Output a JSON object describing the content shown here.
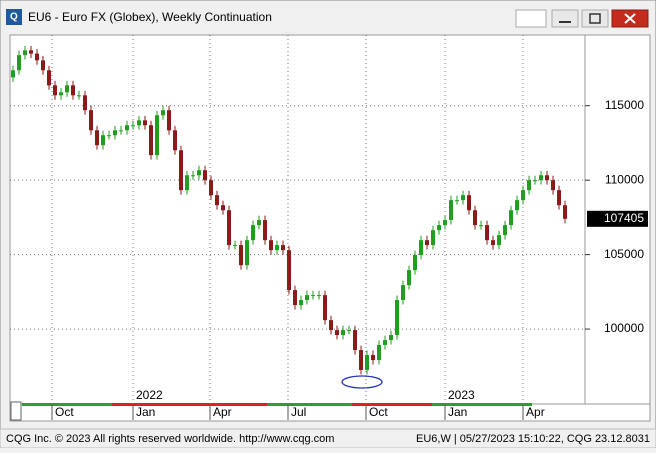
{
  "chart_data": {
    "type": "candlestick",
    "title": "EU6 - Euro FX (Globex), Weekly Continuation",
    "open": [
      116900,
      117380,
      118400,
      118720,
      118500,
      118050,
      117380,
      116370,
      115700,
      115900,
      116370,
      115700,
      115700,
      114700,
      113350,
      112350,
      113020,
      113020,
      113350,
      113350,
      113690,
      113690,
      114020,
      113690,
      111680,
      114360,
      114700,
      113350,
      112010,
      109330,
      110330,
      110330,
      110670,
      110000,
      108990,
      108320,
      107980,
      105640,
      105640,
      104290,
      105970,
      106980,
      107320,
      105970,
      105300,
      105640,
      105300,
      102620,
      101610,
      101950,
      102280,
      102280,
      102280,
      100600,
      99930,
      99600,
      99930,
      99930,
      98590,
      97250,
      98260,
      97920,
      98930,
      99260,
      99600,
      101950,
      102950,
      103960,
      104970,
      105970,
      105640,
      106640,
      106980,
      107320,
      108660,
      108660,
      108990,
      107980,
      106980,
      106980,
      105970,
      105640,
      106310,
      106980,
      107980,
      108660,
      109330,
      110000,
      110000,
      110330,
      110000,
      109330,
      108320
    ],
    "high": [
      117680,
      118700,
      119020,
      119020,
      118800,
      118350,
      117680,
      116670,
      116200,
      116670,
      116670,
      116000,
      116000,
      115000,
      113650,
      113320,
      113320,
      113650,
      113650,
      113990,
      113990,
      114320,
      114320,
      113990,
      114660,
      115000,
      115000,
      113650,
      112310,
      110630,
      110630,
      110970,
      110970,
      110300,
      109290,
      108620,
      108280,
      105940,
      105940,
      106270,
      107280,
      107620,
      107620,
      106270,
      105940,
      105940,
      105600,
      102920,
      102250,
      102580,
      102580,
      102580,
      102580,
      100900,
      100230,
      100230,
      100230,
      100230,
      98890,
      98560,
      98560,
      99230,
      99560,
      99900,
      102250,
      103250,
      104260,
      105270,
      106270,
      106270,
      106940,
      107280,
      107620,
      108960,
      108960,
      109290,
      109290,
      108280,
      107280,
      107280,
      106270,
      106610,
      107280,
      108280,
      108960,
      109630,
      110300,
      110300,
      110630,
      110630,
      110300,
      109630,
      108620
    ],
    "low": [
      116600,
      117080,
      118100,
      118200,
      117750,
      117080,
      116070,
      115400,
      115400,
      115600,
      115400,
      115400,
      114400,
      113050,
      112050,
      112050,
      112720,
      112720,
      113050,
      113050,
      113390,
      113390,
      113390,
      111380,
      111380,
      114060,
      113050,
      111710,
      109030,
      109030,
      110030,
      110030,
      109700,
      108690,
      108020,
      107680,
      105340,
      105340,
      103990,
      103990,
      105670,
      106680,
      105670,
      105000,
      105000,
      105000,
      102320,
      101310,
      101310,
      101650,
      101980,
      101980,
      100300,
      99630,
      99300,
      99300,
      99630,
      98290,
      96950,
      96950,
      97620,
      97620,
      98630,
      98960,
      99300,
      101650,
      102650,
      103660,
      104670,
      105340,
      105340,
      106340,
      106680,
      107020,
      108360,
      108360,
      107680,
      106680,
      106680,
      105670,
      105340,
      105340,
      106010,
      106680,
      107680,
      108360,
      109030,
      109700,
      109700,
      109700,
      109030,
      108020,
      107105
    ],
    "close": [
      117380,
      118400,
      118720,
      118500,
      118050,
      117380,
      116370,
      115700,
      115900,
      116370,
      115700,
      115700,
      114700,
      113350,
      112350,
      113020,
      113020,
      113350,
      113350,
      113690,
      113690,
      114020,
      113690,
      111680,
      114360,
      114700,
      113350,
      112010,
      109330,
      110330,
      110330,
      110670,
      110000,
      108990,
      108320,
      107980,
      105640,
      105640,
      104290,
      105970,
      106980,
      107320,
      105970,
      105300,
      105640,
      105300,
      102620,
      101610,
      101950,
      102280,
      102280,
      102280,
      100600,
      99930,
      99600,
      99930,
      99930,
      98590,
      97250,
      98260,
      97920,
      98930,
      99260,
      99600,
      101950,
      102950,
      103960,
      104970,
      105970,
      105640,
      106640,
      106980,
      107320,
      108660,
      108660,
      108990,
      107980,
      106980,
      106980,
      105970,
      105640,
      106310,
      106980,
      107980,
      108660,
      109330,
      110000,
      110000,
      110330,
      110000,
      109330,
      108320,
      107405
    ],
    "up_color": "#1f9e1f",
    "down_color": "#8b1a1a",
    "xlim": [
      -0.5,
      95.33
    ],
    "xticks": [
      {
        "value": 6.5,
        "label": "Oct"
      },
      {
        "value": 20,
        "label": "Jan"
      },
      {
        "value": 32.83,
        "label": "Apr"
      },
      {
        "value": 45.83,
        "label": "Jul"
      },
      {
        "value": 58.83,
        "label": "Oct"
      },
      {
        "value": 72,
        "label": "Jan"
      },
      {
        "value": 85,
        "label": "Apr"
      }
    ],
    "year_ticks": [
      {
        "value": 20,
        "label": "2022"
      },
      {
        "value": 72,
        "label": "2023"
      }
    ],
    "ylim": [
      94900,
      119750
    ],
    "yticks": [
      100000,
      105000,
      110000,
      115000
    ],
    "grid": true
  },
  "status_bar": {
    "left": "CQG Inc. © 2023 All rights reserved worldwide. http://www.cqg.com",
    "right": "EU6,W | 05/27/2023 15:10:22, CQG 23.12.8031"
  }
}
